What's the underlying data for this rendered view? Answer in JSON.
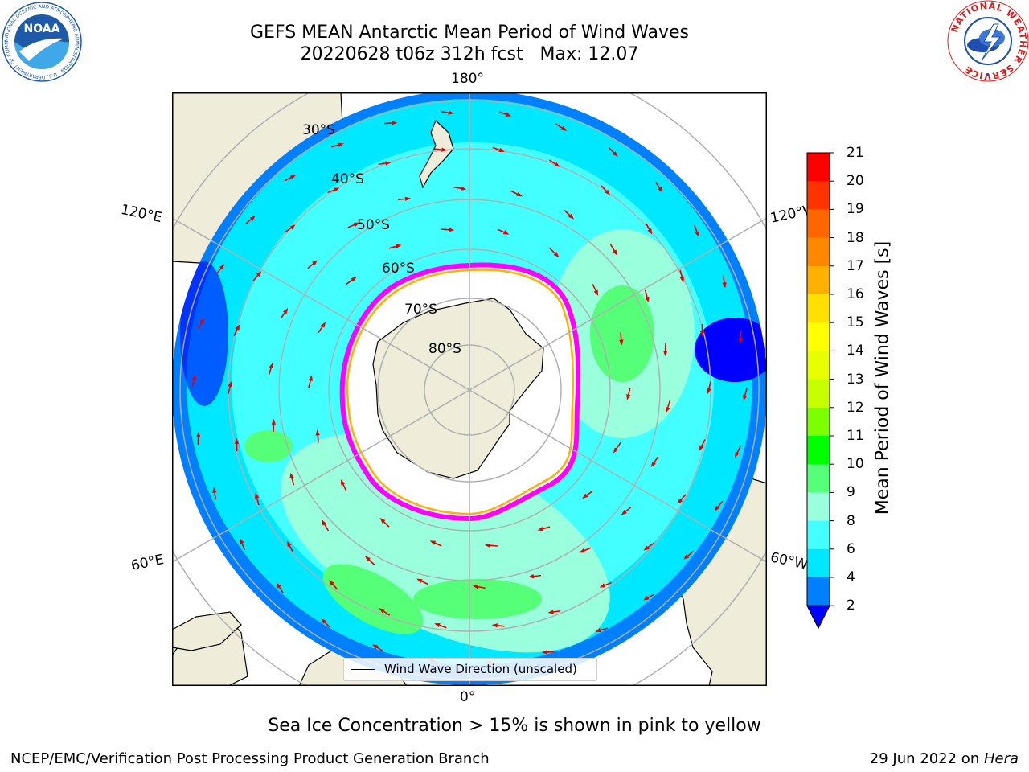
{
  "header": {
    "title_line1": "GEFS MEAN Antarctic Mean Period of Wind Waves",
    "title_line2": "20220628 t06z 312h fcst   Max: 12.07"
  },
  "logos": {
    "noaa": {
      "text": "NOAA",
      "ring_text": "NATIONAL OCEANIC AND ATMOSPHERIC ADMINISTRATION · U.S. DEPARTMENT OF COMMERCE",
      "icon": "noaa-logo-icon",
      "color": "#1e5aa8"
    },
    "nws": {
      "ring_text": "NATIONAL WEATHER SERVICE",
      "icon": "nws-logo-icon",
      "color": "#d81e1e"
    }
  },
  "map": {
    "projection": "south-polar-stereographic",
    "meridian_labels": {
      "top": "180°",
      "bottom": "0°",
      "left_upper": "120°E",
      "left_lower": "60°E",
      "right_upper": "120°W",
      "right_lower": "60°W"
    },
    "latitude_labels": [
      "30°S",
      "40°S",
      "50°S",
      "60°S",
      "70°S",
      "80°S"
    ],
    "legend_label": "Wind Wave Direction (unscaled)",
    "colors": {
      "land": "#efecda",
      "ice": "#ffffff",
      "ice_edge": [
        "#ff00ff",
        "#ffb000"
      ],
      "arrow": "#e60000",
      "grid": "#b0b0b0"
    }
  },
  "colorbar": {
    "label": "Mean Period of Wind Waves [s]",
    "ticks": [
      "21",
      "20",
      "19",
      "18",
      "17",
      "16",
      "15",
      "14",
      "13",
      "12",
      "11",
      "10",
      "9",
      "8",
      "6",
      "4",
      "2"
    ],
    "colors": [
      "#ff0000",
      "#ff3300",
      "#ff6600",
      "#ff8800",
      "#ffb000",
      "#ffe000",
      "#ffff00",
      "#e8ff00",
      "#c8ff00",
      "#7cff00",
      "#00ff00",
      "#55ff77",
      "#99ffdd",
      "#44ffff",
      "#00e8ff",
      "#0080ff"
    ],
    "extend_color": "#0000ff"
  },
  "footer": {
    "subtitle": "Sea Ice Concentration > 15% is shown in pink to yellow",
    "left": "NCEP/EMC/Verification Post Processing Product Generation Branch",
    "right_date": "29 Jun 2022 on ",
    "right_machine": "Hera"
  }
}
